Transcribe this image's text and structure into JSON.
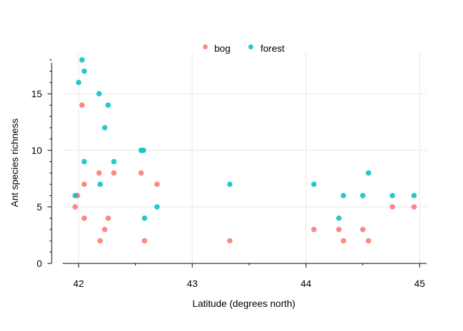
{
  "chart_data": {
    "type": "scatter",
    "title": "",
    "xlabel": "Latitude (degrees north)",
    "ylabel": "Ant species richness",
    "xlim": [
      41.86,
      45.06
    ],
    "ylim": [
      0,
      18.6
    ],
    "x_ticks": [
      42,
      43,
      44,
      45
    ],
    "y_ticks": [
      0,
      5,
      10,
      15
    ],
    "grid": true,
    "legend_position": "top-center",
    "series": [
      {
        "name": "bog",
        "color": "#F8766D",
        "points": [
          [
            41.97,
            5
          ],
          [
            41.99,
            6
          ],
          [
            42.03,
            14
          ],
          [
            42.05,
            4
          ],
          [
            42.05,
            7
          ],
          [
            42.18,
            8
          ],
          [
            42.19,
            2
          ],
          [
            42.23,
            3
          ],
          [
            42.26,
            4
          ],
          [
            42.31,
            8
          ],
          [
            42.55,
            8
          ],
          [
            42.58,
            2
          ],
          [
            42.69,
            7
          ],
          [
            43.33,
            2
          ],
          [
            44.07,
            3
          ],
          [
            44.29,
            3
          ],
          [
            44.33,
            2
          ],
          [
            44.5,
            3
          ],
          [
            44.55,
            2
          ],
          [
            44.76,
            5
          ],
          [
            44.95,
            5
          ]
        ]
      },
      {
        "name": "forest",
        "color": "#00BFC4",
        "points": [
          [
            41.97,
            6
          ],
          [
            42.0,
            16
          ],
          [
            42.03,
            18
          ],
          [
            42.05,
            17
          ],
          [
            42.05,
            9
          ],
          [
            42.18,
            15
          ],
          [
            42.19,
            7
          ],
          [
            42.23,
            12
          ],
          [
            42.26,
            14
          ],
          [
            42.31,
            9
          ],
          [
            42.55,
            10
          ],
          [
            42.57,
            10
          ],
          [
            42.58,
            4
          ],
          [
            42.69,
            5
          ],
          [
            43.33,
            7
          ],
          [
            44.07,
            7
          ],
          [
            44.29,
            4
          ],
          [
            44.33,
            6
          ],
          [
            44.5,
            6
          ],
          [
            44.55,
            8
          ],
          [
            44.76,
            6
          ],
          [
            44.95,
            6
          ]
        ]
      }
    ]
  }
}
